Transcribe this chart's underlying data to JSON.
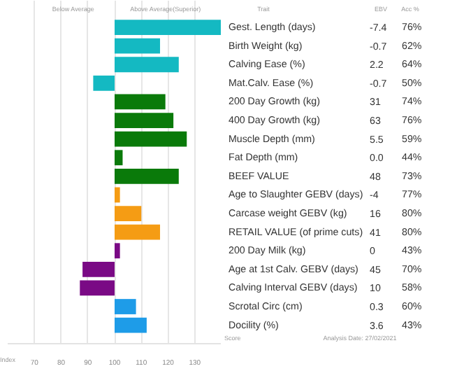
{
  "chart_data": {
    "type": "bar",
    "orientation": "horizontal",
    "categories": [
      "Gest. Length (days)",
      "Birth Weight (kg)",
      "Calving Ease (%)",
      "Mat.Calv. Ease (%)",
      "200 Day Growth (kg)",
      "400 Day Growth (kg)",
      "Muscle Depth (mm)",
      "Fat Depth (mm)",
      "BEEF VALUE",
      "Age to Slaughter GEBV (days)",
      "Carcase weight GEBV (kg)",
      "RETAIL VALUE (of prime cuts)",
      "200 Day Milk (kg)",
      "Age at 1st Calv. GEBV (days)",
      "Calving Interval GEBV (days)",
      "Scrotal Circ (cm)",
      "Docility (%)"
    ],
    "values": [
      40,
      17,
      24,
      -8,
      19,
      22,
      27,
      3,
      24,
      2,
      10,
      17,
      2,
      -12,
      -13,
      8,
      12
    ],
    "base": [
      100,
      100,
      100,
      100,
      100,
      100,
      100,
      100,
      100,
      100,
      100,
      100,
      100,
      100,
      100,
      100,
      100
    ],
    "colors": [
      "#14b9c2",
      "#14b9c2",
      "#14b9c2",
      "#14b9c2",
      "#0a7a0a",
      "#0a7a0a",
      "#0a7a0a",
      "#0a7a0a",
      "#0a7a0a",
      "#f59c14",
      "#f59c14",
      "#f59c14",
      "#7a0a85",
      "#7a0a85",
      "#7a0a85",
      "#1e9ce8",
      "#1e9ce8"
    ],
    "xlim": [
      60,
      140
    ],
    "xticks": [
      70,
      80,
      90,
      100,
      110,
      120,
      130
    ],
    "grid": "x",
    "annotations": [
      "Below Average",
      "Above Average(Superior)",
      "Trait",
      "EBV",
      "Acc %",
      "Index",
      "Score",
      "Analysis Date: 27/02/2021",
      "-7.4",
      "76%",
      "-0.7",
      "62%",
      "2.2",
      "64%",
      "-0.7",
      "50%",
      "31",
      "74%",
      "63",
      "76%",
      "5.5",
      "59%",
      "0.0",
      "44%",
      "48",
      "73%",
      "-4",
      "77%",
      "16",
      "80%",
      "41",
      "80%",
      "0",
      "43%",
      "45",
      "70%",
      "10",
      "58%",
      "0.3",
      "60%",
      "3.6",
      "43%"
    ]
  }
}
